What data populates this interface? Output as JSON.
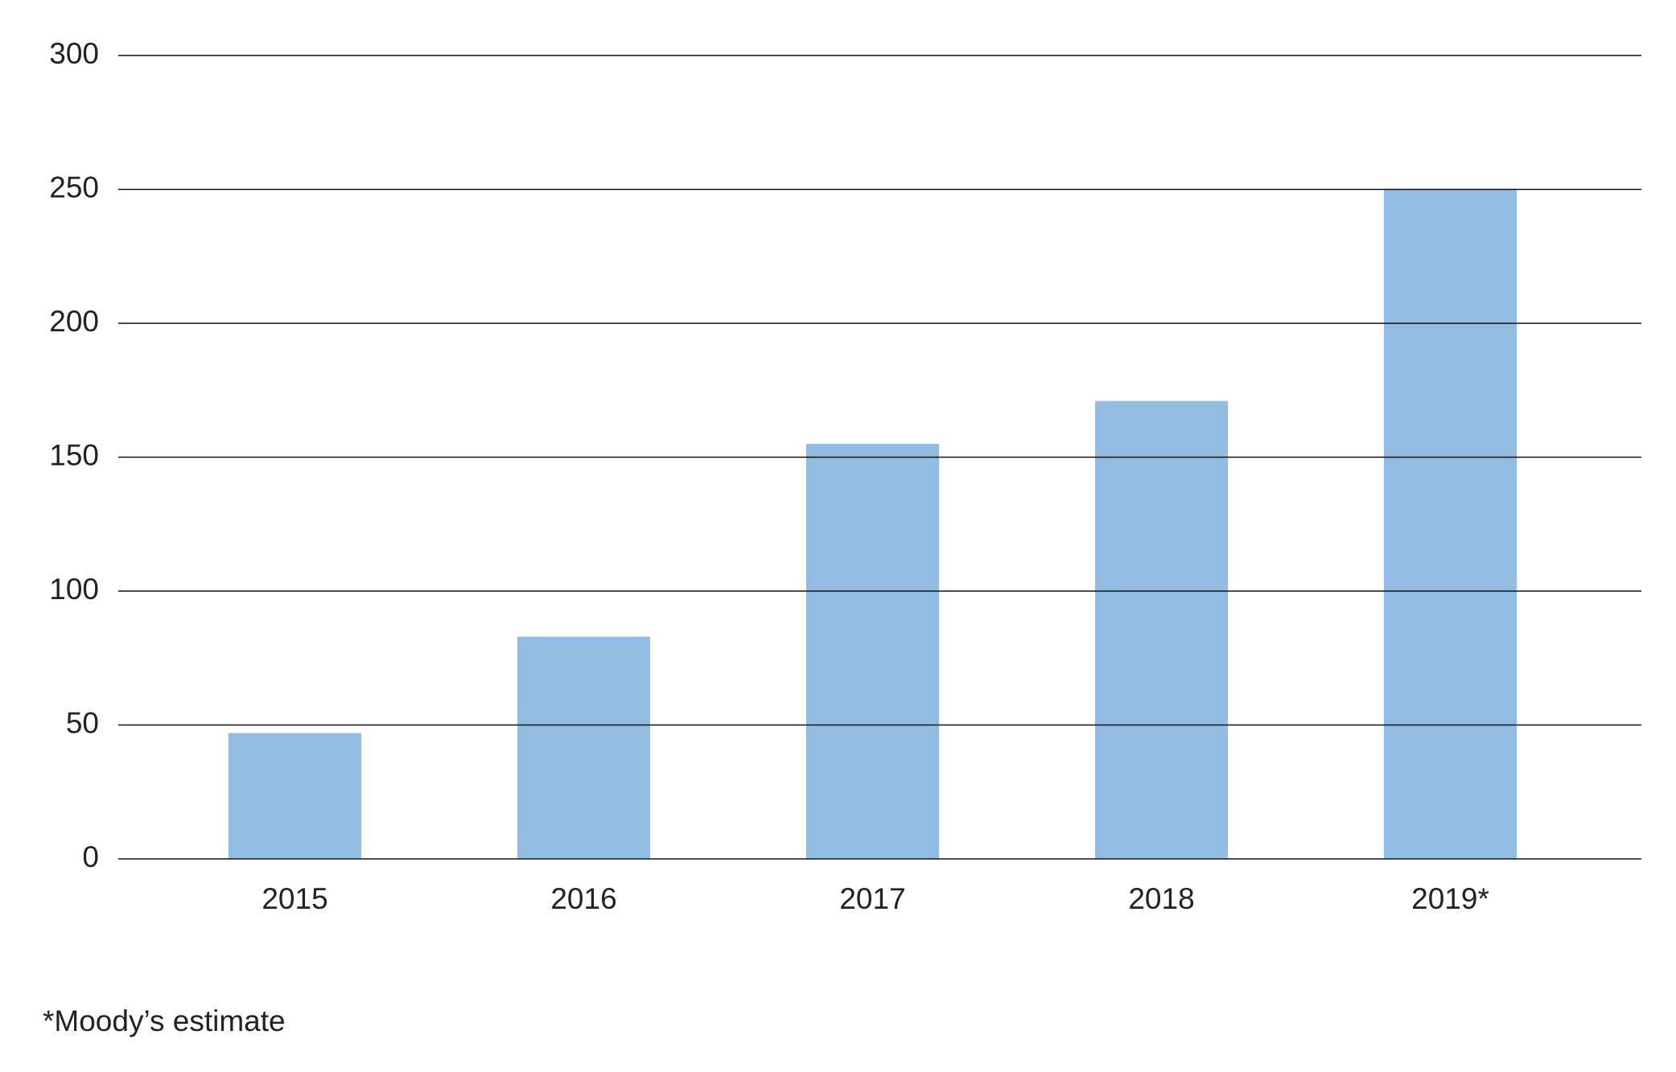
{
  "chart_data": {
    "type": "bar",
    "categories": [
      "2015",
      "2016",
      "2017",
      "2018",
      "2019*"
    ],
    "values": [
      47,
      83,
      155,
      171,
      250
    ],
    "color": "#93bce3",
    "ylim": [
      0,
      300
    ],
    "yticks": [
      0,
      50,
      100,
      150,
      200,
      250,
      300
    ],
    "grid": true,
    "note": "*Moody’s estimate"
  }
}
